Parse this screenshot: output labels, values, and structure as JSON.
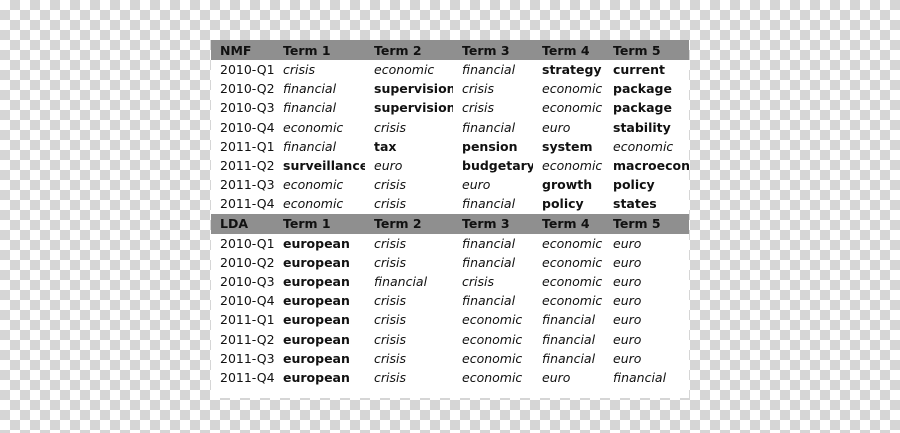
{
  "tables": [
    {
      "method": "NMF",
      "headers": [
        "NMF",
        "Term 1",
        "Term 2",
        "Term 3",
        "Term 4",
        "Term 5"
      ],
      "rows": [
        {
          "quarter": "2010-Q1",
          "terms": [
            {
              "t": "crisis",
              "s": "it"
            },
            {
              "t": "economic",
              "s": "it"
            },
            {
              "t": "financial",
              "s": "it"
            },
            {
              "t": "strategy",
              "s": "bd"
            },
            {
              "t": "current",
              "s": "bd"
            }
          ]
        },
        {
          "quarter": "2010-Q2",
          "terms": [
            {
              "t": "financial",
              "s": "it"
            },
            {
              "t": "supervision",
              "s": "bd"
            },
            {
              "t": "crisis",
              "s": "it"
            },
            {
              "t": "economic",
              "s": "it"
            },
            {
              "t": "package",
              "s": "bd"
            }
          ]
        },
        {
          "quarter": "2010-Q3",
          "terms": [
            {
              "t": "financial",
              "s": "it"
            },
            {
              "t": "supervision",
              "s": "bd"
            },
            {
              "t": "crisis",
              "s": "it"
            },
            {
              "t": "economic",
              "s": "it"
            },
            {
              "t": "package",
              "s": "bd"
            }
          ]
        },
        {
          "quarter": "2010-Q4",
          "terms": [
            {
              "t": "economic",
              "s": "it"
            },
            {
              "t": "crisis",
              "s": "it"
            },
            {
              "t": "financial",
              "s": "it"
            },
            {
              "t": "euro",
              "s": "it"
            },
            {
              "t": "stability",
              "s": "bd"
            }
          ]
        },
        {
          "quarter": "2011-Q1",
          "terms": [
            {
              "t": "financial",
              "s": "it"
            },
            {
              "t": "tax",
              "s": "bd"
            },
            {
              "t": "pension",
              "s": "bd"
            },
            {
              "t": "system",
              "s": "bd"
            },
            {
              "t": "economic",
              "s": "it"
            }
          ]
        },
        {
          "quarter": "2011-Q2",
          "terms": [
            {
              "t": "surveillance",
              "s": "bd"
            },
            {
              "t": "euro",
              "s": "it"
            },
            {
              "t": "budgetary",
              "s": "bd"
            },
            {
              "t": "economic",
              "s": "it"
            },
            {
              "t": "macroecon",
              "s": "bd"
            }
          ]
        },
        {
          "quarter": "2011-Q3",
          "terms": [
            {
              "t": "economic",
              "s": "it"
            },
            {
              "t": "crisis",
              "s": "it"
            },
            {
              "t": "euro",
              "s": "it"
            },
            {
              "t": "growth",
              "s": "bd"
            },
            {
              "t": "policy",
              "s": "bd"
            }
          ]
        },
        {
          "quarter": "2011-Q4",
          "terms": [
            {
              "t": "economic",
              "s": "it"
            },
            {
              "t": "crisis",
              "s": "it"
            },
            {
              "t": "financial",
              "s": "it"
            },
            {
              "t": "policy",
              "s": "bd"
            },
            {
              "t": "states",
              "s": "bd"
            }
          ]
        }
      ]
    },
    {
      "method": "LDA",
      "headers": [
        "LDA",
        "Term 1",
        "Term 2",
        "Term 3",
        "Term 4",
        "Term 5"
      ],
      "rows": [
        {
          "quarter": "2010-Q1",
          "terms": [
            {
              "t": "european",
              "s": "bd"
            },
            {
              "t": "crisis",
              "s": "it"
            },
            {
              "t": "financial",
              "s": "it"
            },
            {
              "t": "economic",
              "s": "it"
            },
            {
              "t": "euro",
              "s": "it"
            }
          ]
        },
        {
          "quarter": "2010-Q2",
          "terms": [
            {
              "t": "european",
              "s": "bd"
            },
            {
              "t": "crisis",
              "s": "it"
            },
            {
              "t": "financial",
              "s": "it"
            },
            {
              "t": "economic",
              "s": "it"
            },
            {
              "t": "euro",
              "s": "it"
            }
          ]
        },
        {
          "quarter": "2010-Q3",
          "terms": [
            {
              "t": "european",
              "s": "bd"
            },
            {
              "t": "financial",
              "s": "it"
            },
            {
              "t": "crisis",
              "s": "it"
            },
            {
              "t": "economic",
              "s": "it"
            },
            {
              "t": "euro",
              "s": "it"
            }
          ]
        },
        {
          "quarter": "2010-Q4",
          "terms": [
            {
              "t": "european",
              "s": "bd"
            },
            {
              "t": "crisis",
              "s": "it"
            },
            {
              "t": "financial",
              "s": "it"
            },
            {
              "t": "economic",
              "s": "it"
            },
            {
              "t": "euro",
              "s": "it"
            }
          ]
        },
        {
          "quarter": "2011-Q1",
          "terms": [
            {
              "t": "european",
              "s": "bd"
            },
            {
              "t": "crisis",
              "s": "it"
            },
            {
              "t": "economic",
              "s": "it"
            },
            {
              "t": "financial",
              "s": "it"
            },
            {
              "t": "euro",
              "s": "it"
            }
          ]
        },
        {
          "quarter": "2011-Q2",
          "terms": [
            {
              "t": "european",
              "s": "bd"
            },
            {
              "t": "crisis",
              "s": "it"
            },
            {
              "t": "economic",
              "s": "it"
            },
            {
              "t": "financial",
              "s": "it"
            },
            {
              "t": "euro",
              "s": "it"
            }
          ]
        },
        {
          "quarter": "2011-Q3",
          "terms": [
            {
              "t": "european",
              "s": "bd"
            },
            {
              "t": "crisis",
              "s": "it"
            },
            {
              "t": "economic",
              "s": "it"
            },
            {
              "t": "financial",
              "s": "it"
            },
            {
              "t": "euro",
              "s": "it"
            }
          ]
        },
        {
          "quarter": "2011-Q4",
          "terms": [
            {
              "t": "european",
              "s": "bd"
            },
            {
              "t": "crisis",
              "s": "it"
            },
            {
              "t": "economic",
              "s": "it"
            },
            {
              "t": "euro",
              "s": "it"
            },
            {
              "t": "financial",
              "s": "it"
            }
          ]
        }
      ]
    }
  ],
  "colors": {
    "header_bg": "#8f8f8f",
    "panel_bg": "#ffffff",
    "checker": "#d6d6d6"
  }
}
